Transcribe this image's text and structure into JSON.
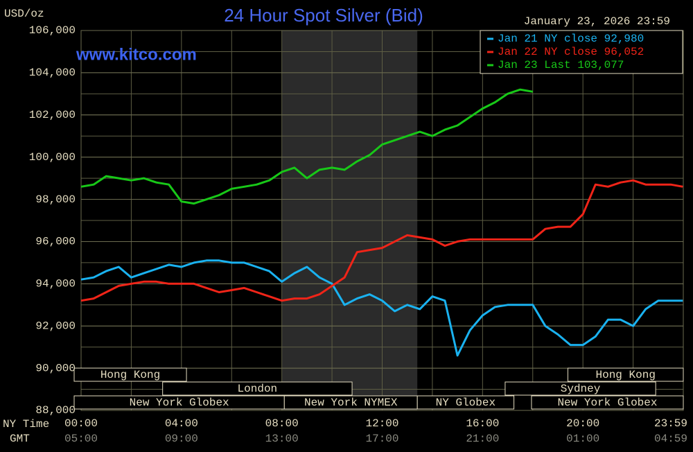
{
  "chart_data": {
    "type": "line",
    "title": "24 Hour Spot Silver (Bid)",
    "y_unit_label": "USD/oz",
    "watermark": "www.kitco.com",
    "timestamp": "January 23, 2026 23:59",
    "x_row_label": "NY Time",
    "x2_row_label": "GMT",
    "x": [
      0,
      0.5,
      1,
      1.5,
      2,
      2.5,
      3,
      3.5,
      4,
      4.5,
      5,
      5.5,
      6,
      6.5,
      7,
      7.5,
      8,
      8.5,
      9,
      9.5,
      10,
      10.5,
      11,
      11.5,
      12,
      12.5,
      13,
      13.5,
      14,
      14.5,
      15,
      15.5,
      16,
      16.5,
      17,
      17.5,
      18,
      18.5,
      19,
      19.5,
      20,
      20.5,
      21,
      21.5,
      22,
      22.5,
      23,
      23.5,
      23.98
    ],
    "series": [
      {
        "name": "Jan 21 NY close 92,980",
        "color": "#1ab2f0",
        "values": [
          94.2,
          94.3,
          94.6,
          94.8,
          94.3,
          94.5,
          94.7,
          94.9,
          94.8,
          95.0,
          95.1,
          95.1,
          95.0,
          95.0,
          94.8,
          94.6,
          94.1,
          94.5,
          94.8,
          94.3,
          94.0,
          93.0,
          93.3,
          93.5,
          93.2,
          92.7,
          93.0,
          92.8,
          93.4,
          93.2,
          90.6,
          91.8,
          92.5,
          92.9,
          93.0,
          93.0,
          93.0,
          92.0,
          91.6,
          91.1,
          91.1,
          91.5,
          92.3,
          92.3,
          92.0,
          92.8,
          93.2,
          93.2,
          93.2
        ]
      },
      {
        "name": "Jan 22 NY close 96,052",
        "color": "#f02418",
        "values": [
          93.2,
          93.3,
          93.6,
          93.9,
          94.0,
          94.1,
          94.1,
          94.0,
          94.0,
          94.0,
          93.8,
          93.6,
          93.7,
          93.8,
          93.6,
          93.4,
          93.2,
          93.3,
          93.3,
          93.5,
          93.9,
          94.3,
          95.5,
          95.6,
          95.7,
          96.0,
          96.3,
          96.2,
          96.1,
          95.8,
          96.0,
          96.1,
          96.1,
          96.1,
          96.1,
          96.1,
          96.1,
          96.6,
          96.7,
          96.7,
          97.3,
          98.7,
          98.6,
          98.8,
          98.9,
          98.7,
          98.7,
          98.7,
          98.6
        ]
      },
      {
        "name": "Jan 23 Last 103,077",
        "color": "#18c818",
        "values": [
          98.6,
          98.7,
          99.1,
          99.0,
          98.9,
          99.0,
          98.8,
          98.7,
          97.9,
          97.8,
          98.0,
          98.2,
          98.5,
          98.6,
          98.7,
          98.9,
          99.3,
          99.5,
          99.0,
          99.4,
          99.5,
          99.4,
          99.8,
          100.1,
          100.6,
          100.8,
          101.0,
          101.2,
          101.0,
          101.3,
          101.5,
          101.9,
          102.3,
          102.6,
          103.0,
          103.2,
          103.1,
          null,
          null,
          null,
          null,
          null,
          null,
          null,
          null,
          null,
          null,
          null,
          null
        ]
      }
    ],
    "xlim": [
      0,
      24
    ],
    "xticks": [
      {
        "value": 0,
        "label": "00:00"
      },
      {
        "value": 4,
        "label": "04:00"
      },
      {
        "value": 8,
        "label": "08:00"
      },
      {
        "value": 12,
        "label": "12:00"
      },
      {
        "value": 16,
        "label": "16:00"
      },
      {
        "value": 20,
        "label": "20:00"
      },
      {
        "value": 23.98,
        "label": "23:59"
      }
    ],
    "x2ticks": [
      {
        "value": 0,
        "label": "05:00"
      },
      {
        "value": 4,
        "label": "09:00"
      },
      {
        "value": 8,
        "label": "13:00"
      },
      {
        "value": 12,
        "label": "17:00"
      },
      {
        "value": 16,
        "label": "21:00"
      },
      {
        "value": 20,
        "label": "01:00"
      },
      {
        "value": 23.98,
        "label": "04:59"
      }
    ],
    "ylim": [
      88,
      106
    ],
    "yticks": [
      {
        "value": 88,
        "label": "88,000"
      },
      {
        "value": 90,
        "label": "90,000"
      },
      {
        "value": 92,
        "label": "92,000"
      },
      {
        "value": 94,
        "label": "94,000"
      },
      {
        "value": 96,
        "label": "96,000"
      },
      {
        "value": 98,
        "label": "98,000"
      },
      {
        "value": 100,
        "label": "100,000"
      },
      {
        "value": 102,
        "label": "102,000"
      },
      {
        "value": 104,
        "label": "104,000"
      },
      {
        "value": 106,
        "label": "106,000"
      }
    ],
    "xgrid": [
      0,
      2,
      4,
      6,
      8,
      10,
      12,
      14,
      16,
      18,
      20,
      22,
      24
    ],
    "ygrid": [
      89,
      90,
      91,
      92,
      93,
      94,
      95,
      96,
      97,
      98,
      99,
      100,
      101,
      102,
      103,
      104,
      105
    ],
    "shaded_region": [
      8.0,
      13.4
    ],
    "sessions": [
      {
        "label": "Hong Kong",
        "start": 0,
        "end": 4.2,
        "row": 0
      },
      {
        "label": "Hong Kong",
        "start": 19.4,
        "end": 24,
        "row": 0
      },
      {
        "label": "London",
        "start": 3.25,
        "end": 10.8,
        "row": 1
      },
      {
        "label": "Sydney",
        "start": 16.9,
        "end": 22.9,
        "row": 1
      },
      {
        "label": "New York Globex",
        "start": 0,
        "end": 8.1,
        "row": 2
      },
      {
        "label": "New York NYMEX",
        "start": 8.1,
        "end": 13.4,
        "row": 2
      },
      {
        "label": "NY Globex",
        "start": 13.4,
        "end": 17.25,
        "row": 2
      },
      {
        "label": "New York Globex",
        "start": 17.95,
        "end": 24,
        "row": 2
      }
    ]
  }
}
